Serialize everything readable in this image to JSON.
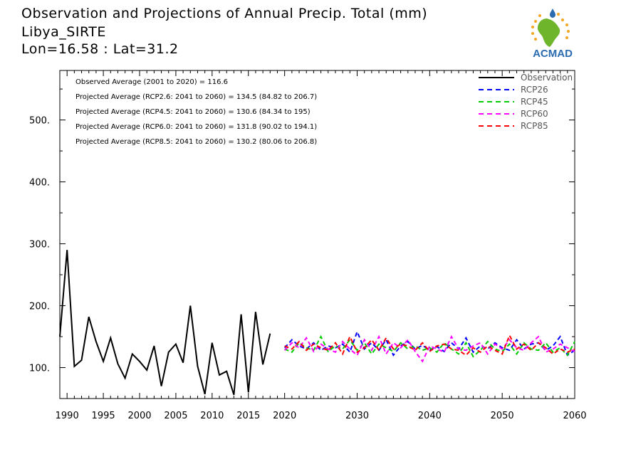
{
  "header": {
    "title": "Observation and Projections of Annual Precip. Total (mm)",
    "location": "Libya_SIRTE",
    "coords": "Lon=16.58 : Lat=31.2"
  },
  "logo": {
    "text": "ACMAD",
    "icon": "africa-map-raindrop-logo",
    "colors": [
      "#2b6cb0",
      "#6fb52c",
      "#f5a623"
    ]
  },
  "stats": [
    "Observed Average (2001 to 2020) = 116.6",
    "Projected Average (RCP2.6: 2041 to 2060) = 134.5 (84.82 to 206.7)",
    "Projected Average (RCP4.5: 2041 to 2060) = 130.6 (84.34 to 195)",
    "Projected Average (RCP6.0: 2041 to 2060) = 131.8 (90.02 to 194.1)",
    "Projected Average (RCP8.5: 2041 to 2060) = 130.2 (80.06 to 206.8)"
  ],
  "chart_data": {
    "type": "line",
    "title": "Observation and Projections of Annual Precip. Total (mm)",
    "xlim": [
      1989,
      2060
    ],
    "ylim": [
      50,
      580
    ],
    "x_ticks": [
      1990,
      1995,
      2000,
      2005,
      2010,
      2015,
      2020,
      2030,
      2040,
      2050,
      2060
    ],
    "y_ticks": [
      100,
      200,
      300,
      400,
      500
    ],
    "y_tick_labels": [
      "100.",
      "200.",
      "300.",
      "400.",
      "500."
    ],
    "legend_position": "top-right",
    "series": [
      {
        "name": "Observation",
        "color": "#000000",
        "dash": "solid",
        "x": [
          1989,
          1990,
          1991,
          1992,
          1993,
          1994,
          1995,
          1996,
          1997,
          1998,
          1999,
          2000,
          2001,
          2002,
          2003,
          2004,
          2005,
          2006,
          2007,
          2008,
          2009,
          2010,
          2011,
          2012,
          2013,
          2014,
          2015,
          2016,
          2017,
          2018,
          2019,
          2020
        ],
        "values": [
          150,
          290,
          102,
          112,
          182,
          142,
          110,
          148,
          106,
          83,
          122,
          110,
          96,
          135,
          70,
          125,
          138,
          108,
          200,
          102,
          57,
          140,
          88,
          94,
          56,
          186,
          60,
          190,
          105,
          155,
          null,
          null
        ]
      },
      {
        "name": "RCP26",
        "color": "#0000ff",
        "dash": "dashed",
        "x": [
          2020,
          2021,
          2022,
          2023,
          2024,
          2025,
          2026,
          2027,
          2028,
          2029,
          2030,
          2031,
          2032,
          2033,
          2034,
          2035,
          2036,
          2037,
          2038,
          2039,
          2040,
          2041,
          2042,
          2043,
          2044,
          2045,
          2046,
          2047,
          2048,
          2049,
          2050,
          2051,
          2052,
          2053,
          2054,
          2055,
          2056,
          2057,
          2058,
          2059,
          2060
        ],
        "values": [
          132,
          145,
          135,
          130,
          140,
          128,
          135,
          132,
          138,
          125,
          158,
          130,
          140,
          128,
          145,
          120,
          135,
          142,
          130,
          136,
          128,
          134,
          126,
          140,
          130,
          148,
          125,
          135,
          130,
          140,
          132,
          128,
          145,
          130,
          138,
          140,
          128,
          135,
          150,
          120,
          128
        ]
      },
      {
        "name": "RCP45",
        "color": "#00cc00",
        "dash": "dashed",
        "x": [
          2020,
          2021,
          2022,
          2023,
          2024,
          2025,
          2026,
          2027,
          2028,
          2029,
          2030,
          2031,
          2032,
          2033,
          2034,
          2035,
          2036,
          2037,
          2038,
          2039,
          2040,
          2041,
          2042,
          2043,
          2044,
          2045,
          2046,
          2047,
          2048,
          2049,
          2050,
          2051,
          2052,
          2053,
          2054,
          2055,
          2056,
          2057,
          2058,
          2059,
          2060
        ],
        "values": [
          130,
          125,
          140,
          132,
          128,
          150,
          126,
          135,
          130,
          145,
          128,
          140,
          122,
          138,
          132,
          126,
          140,
          130,
          135,
          128,
          132,
          125,
          140,
          130,
          122,
          140,
          118,
          128,
          142,
          130,
          126,
          138,
          122,
          140,
          130,
          128,
          140,
          125,
          132,
          120,
          142
        ]
      },
      {
        "name": "RCP60",
        "color": "#ff00ff",
        "dash": "dashed",
        "x": [
          2020,
          2021,
          2022,
          2023,
          2024,
          2025,
          2026,
          2027,
          2028,
          2029,
          2030,
          2031,
          2032,
          2033,
          2034,
          2035,
          2036,
          2037,
          2038,
          2039,
          2040,
          2041,
          2042,
          2043,
          2044,
          2045,
          2046,
          2047,
          2048,
          2049,
          2050,
          2051,
          2052,
          2053,
          2054,
          2055,
          2056,
          2057,
          2058,
          2059,
          2060
        ],
        "values": [
          128,
          140,
          132,
          148,
          126,
          138,
          130,
          125,
          142,
          130,
          120,
          145,
          128,
          150,
          122,
          140,
          132,
          145,
          126,
          110,
          135,
          130,
          125,
          150,
          130,
          128,
          135,
          140,
          122,
          138,
          130,
          145,
          132,
          128,
          140,
          150,
          125,
          130,
          138,
          132,
          126
        ]
      },
      {
        "name": "RCP85",
        "color": "#ff0000",
        "dash": "dashed",
        "x": [
          2020,
          2021,
          2022,
          2023,
          2024,
          2025,
          2026,
          2027,
          2028,
          2029,
          2030,
          2031,
          2032,
          2033,
          2034,
          2035,
          2036,
          2037,
          2038,
          2039,
          2040,
          2041,
          2042,
          2043,
          2044,
          2045,
          2046,
          2047,
          2048,
          2049,
          2050,
          2051,
          2052,
          2053,
          2054,
          2055,
          2056,
          2057,
          2058,
          2059,
          2060
        ],
        "values": [
          135,
          130,
          142,
          128,
          138,
          132,
          128,
          140,
          122,
          150,
          125,
          132,
          145,
          128,
          148,
          130,
          138,
          135,
          128,
          140,
          126,
          135,
          138,
          130,
          128,
          120,
          132,
          125,
          135,
          128,
          122,
          152,
          130,
          138,
          128,
          140,
          132,
          122,
          130,
          125,
          130
        ]
      }
    ]
  }
}
